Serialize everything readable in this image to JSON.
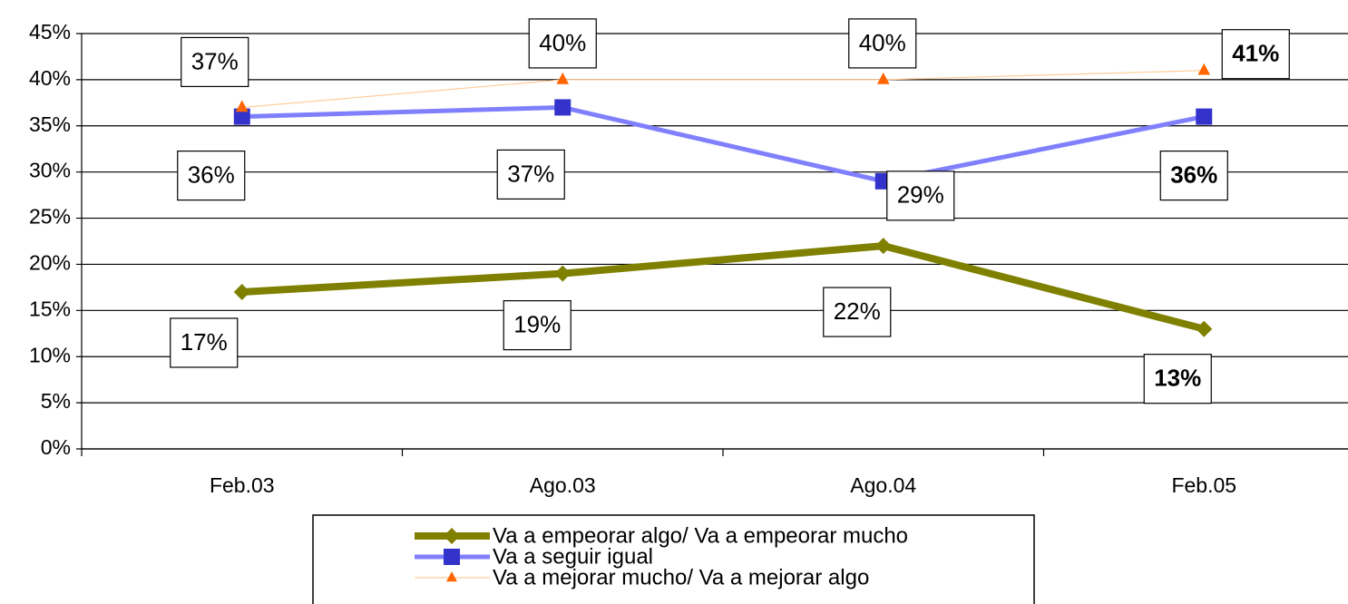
{
  "chart_data": {
    "type": "line",
    "categories": [
      "Feb.03",
      "Ago.03",
      "Ago.04",
      "Feb.05"
    ],
    "ylim": [
      0,
      45
    ],
    "yticks": [
      {
        "value": 0,
        "label": "0%"
      },
      {
        "value": 5,
        "label": "5%"
      },
      {
        "value": 10,
        "label": "10%"
      },
      {
        "value": 15,
        "label": "15%"
      },
      {
        "value": 20,
        "label": "20%"
      },
      {
        "value": 25,
        "label": "25%"
      },
      {
        "value": 30,
        "label": "30%"
      },
      {
        "value": 35,
        "label": "35%"
      },
      {
        "value": 40,
        "label": "40%"
      },
      {
        "value": 45,
        "label": "45%"
      }
    ],
    "grid": true,
    "legend": "bottom",
    "series": [
      {
        "name": "Va a empeorar algo/ Va a empeorar mucho",
        "color": "#808000",
        "marker_color": "#808000",
        "marker": "diamond",
        "values": [
          17,
          19,
          22,
          13
        ],
        "value_labels": [
          "17%",
          "19%",
          "22%",
          "13%"
        ]
      },
      {
        "name": "Va a seguir igual",
        "color": "#8080ff",
        "marker_color": "#3333cc",
        "marker": "square",
        "values": [
          36,
          37,
          29,
          36
        ],
        "value_labels": [
          "36%",
          "37%",
          "29%",
          "36%"
        ]
      },
      {
        "name": "Va a mejorar mucho/ Va a mejorar algo",
        "color": "#ffcc99",
        "marker_color": "#ff6600",
        "marker": "triangle",
        "values": [
          37,
          40,
          40,
          41
        ],
        "value_labels": [
          "37%",
          "40%",
          "40%",
          "41%"
        ]
      }
    ]
  }
}
